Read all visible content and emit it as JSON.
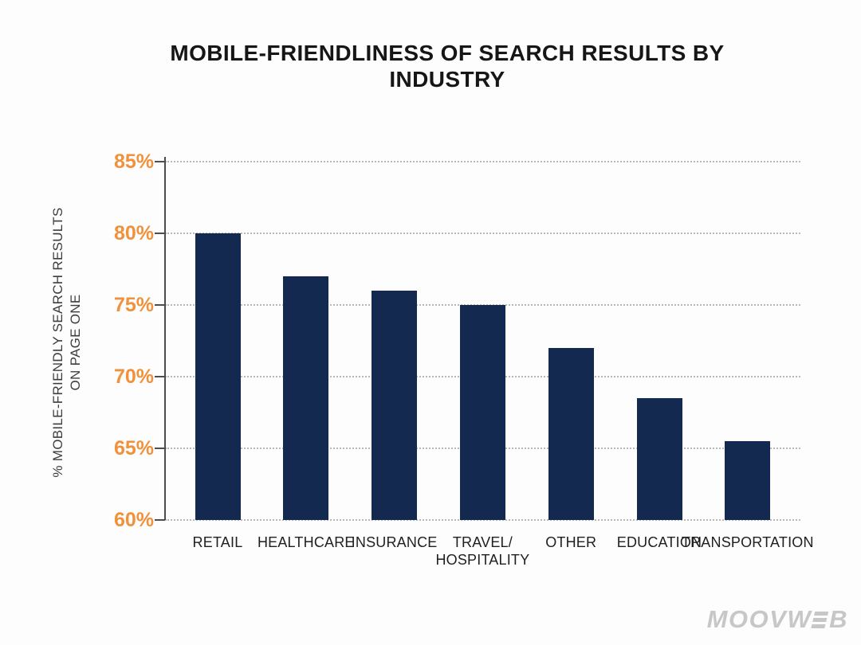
{
  "chart_data": {
    "type": "bar",
    "title": "MOBILE-FRIENDLINESS OF SEARCH RESULTS BY INDUSTRY",
    "categories": [
      "RETAIL",
      "HEALTHCARE",
      "INSURANCE",
      "TRAVEL/\nHOSPITALITY",
      "OTHER",
      "EDUCATION",
      "TRANSPORTATION"
    ],
    "values": [
      80,
      77,
      76,
      75,
      72,
      68.5,
      65.5
    ],
    "xlabel": "",
    "ylabel": "% MOBILE-FRIENDLY SEARCH RESULTS\nON PAGE ONE",
    "ylim": [
      60,
      85
    ],
    "ytick_step": 5,
    "ytick_labels": [
      "60%",
      "65%",
      "70%",
      "75%",
      "80%",
      "85%"
    ],
    "grid": "horizontal-dotted",
    "legend": "none"
  },
  "colors": {
    "bar": "#13294f",
    "tick_label": "#f0913b",
    "title": "#161616",
    "axis_label": "#3d3d3d",
    "x_label": "#1f1f1f",
    "gridline": "#b8b8b8",
    "axis_line": "#4d4d4d",
    "logo": "#c7c7c7",
    "background": "#fdfdfd"
  },
  "footer": {
    "logo_text": "MOOVWEB",
    "logo_prefix": "MOOVW",
    "logo_suffix": "B"
  }
}
